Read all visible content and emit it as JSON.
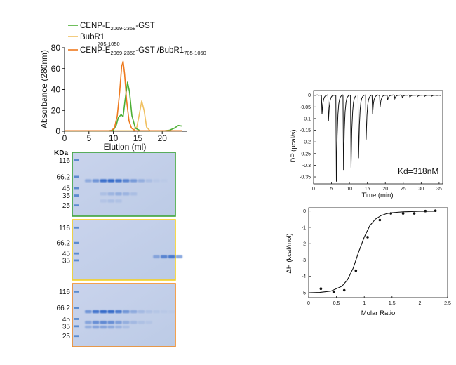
{
  "chart_data": [
    {
      "type": "line",
      "xlabel": "Elution (ml)",
      "ylabel": "Absorbance (280nm)",
      "xlim": [
        0,
        25
      ],
      "ylim": [
        0,
        80
      ],
      "xticks": [
        "0",
        "5",
        "10",
        "15",
        "20"
      ],
      "yticks": [
        "0",
        "20",
        "40",
        "60",
        "80"
      ],
      "legend": "top-left",
      "series": [
        {
          "name_main": "CENP-E",
          "name_sub": "2069-2358",
          "name_tail": "-GST",
          "color": "#4caf34",
          "x": [
            0,
            9,
            10,
            10.6,
            11,
            11.6,
            12,
            12.4,
            12.9,
            13.3,
            13.8,
            14.5,
            15.5,
            20.5,
            21.5,
            22.5,
            23.3,
            24
          ],
          "y": [
            0.5,
            0.5,
            1,
            6,
            13,
            16,
            14,
            30,
            47,
            38,
            15,
            3,
            0.5,
            0.5,
            1,
            3,
            5.5,
            5
          ]
        },
        {
          "name_main": "BubR1",
          "name_sub": "705-1050",
          "name_tail": "",
          "color": "#f0c060",
          "x": [
            0,
            14,
            14.8,
            15.3,
            15.8,
            16.3,
            16.8,
            17.5,
            24
          ],
          "y": [
            0.5,
            0.5,
            4,
            16,
            29,
            20,
            4,
            0.5,
            0.5
          ]
        },
        {
          "name_main": "CENP-E",
          "name_sub": "2069-2358",
          "name_tail": "-GST /BubR1",
          "name_sub2": "705-1050",
          "color": "#ee7a1e",
          "x": [
            0,
            9.5,
            10.2,
            10.8,
            11.3,
            11.7,
            12,
            12.3,
            12.7,
            13.2,
            13.7,
            14.5,
            24
          ],
          "y": [
            0.5,
            0.5,
            3,
            15,
            38,
            62,
            67,
            55,
            30,
            10,
            3,
            0.5,
            0.5
          ]
        }
      ]
    },
    {
      "type": "line",
      "annotation": "Kd=318nM",
      "xlabel": "Time (min)",
      "ylabel": "DP (μcal/s)",
      "xlim": [
        0,
        36
      ],
      "ylim": [
        -0.38,
        0.02
      ],
      "xticks": [
        "0",
        "5",
        "10",
        "15",
        "20",
        "25",
        "30",
        "35"
      ],
      "yticks": [
        "0",
        "-0.05",
        "-0.1",
        "-0.15",
        "-0.2",
        "-0.25",
        "-0.3",
        "-0.35"
      ],
      "baseline": 0,
      "injections": {
        "time": [
          2.2,
          4.0,
          6.2,
          8.2,
          10.3,
          12.4,
          14.5,
          16.3,
          18.4,
          20.5,
          22.5,
          24.6,
          26.7,
          28.8,
          30.8,
          32.8
        ],
        "min_dp": [
          -0.08,
          -0.11,
          -0.37,
          -0.32,
          -0.31,
          -0.27,
          -0.19,
          -0.08,
          -0.05,
          -0.02,
          -0.015,
          -0.01,
          -0.008,
          -0.006,
          -0.005,
          -0.004
        ]
      }
    },
    {
      "type": "scatter",
      "xlabel": "Molar Ratio",
      "ylabel": "ΔH (kcal/mol)",
      "xlim": [
        0,
        2.5
      ],
      "ylim": [
        -5.3,
        0.2
      ],
      "xticks": [
        "0",
        "0.5",
        "1",
        "1.5",
        "2",
        "2.5"
      ],
      "yticks": [
        "0",
        "-1",
        "-2",
        "-3",
        "-4",
        "-5"
      ],
      "points": {
        "x": [
          0.22,
          0.45,
          0.64,
          0.85,
          1.06,
          1.28,
          1.48,
          1.7,
          1.9,
          2.1,
          2.28
        ],
        "y": [
          -4.75,
          -4.95,
          -4.85,
          -3.65,
          -1.6,
          -0.55,
          -0.15,
          -0.15,
          -0.15,
          0,
          0.02
        ]
      },
      "fit": {
        "x": [
          0,
          0.2,
          0.4,
          0.6,
          0.7,
          0.8,
          0.9,
          1.0,
          1.1,
          1.2,
          1.3,
          1.4,
          1.5,
          1.7,
          2.0,
          2.3
        ],
        "y": [
          -5.0,
          -4.98,
          -4.9,
          -4.6,
          -4.2,
          -3.5,
          -2.5,
          -1.6,
          -0.9,
          -0.5,
          -0.28,
          -0.16,
          -0.1,
          -0.05,
          -0.02,
          -0.01
        ]
      }
    }
  ],
  "gels": {
    "kda_label": "KDa",
    "panels": [
      {
        "border": "#3da33a",
        "markers": [
          {
            "label": "116",
            "mw": 116
          },
          {
            "label": "66.2",
            "mw": 66.2
          },
          {
            "label": "45",
            "mw": 45
          },
          {
            "label": "35",
            "mw": 35
          },
          {
            "label": "25",
            "mw": 25
          }
        ]
      },
      {
        "border": "#f5d020",
        "markers": [
          {
            "label": "116",
            "mw": 116
          },
          {
            "label": "66.2",
            "mw": 66.2
          },
          {
            "label": "45",
            "mw": 45
          },
          {
            "label": "35",
            "mw": 35
          }
        ]
      },
      {
        "border": "#f08a24",
        "markers": [
          {
            "label": "116",
            "mw": 116
          },
          {
            "label": "66.2",
            "mw": 66.2
          },
          {
            "label": "45",
            "mw": 45
          },
          {
            "label": "35",
            "mw": 35
          },
          {
            "label": "25",
            "mw": 25
          }
        ]
      }
    ]
  }
}
